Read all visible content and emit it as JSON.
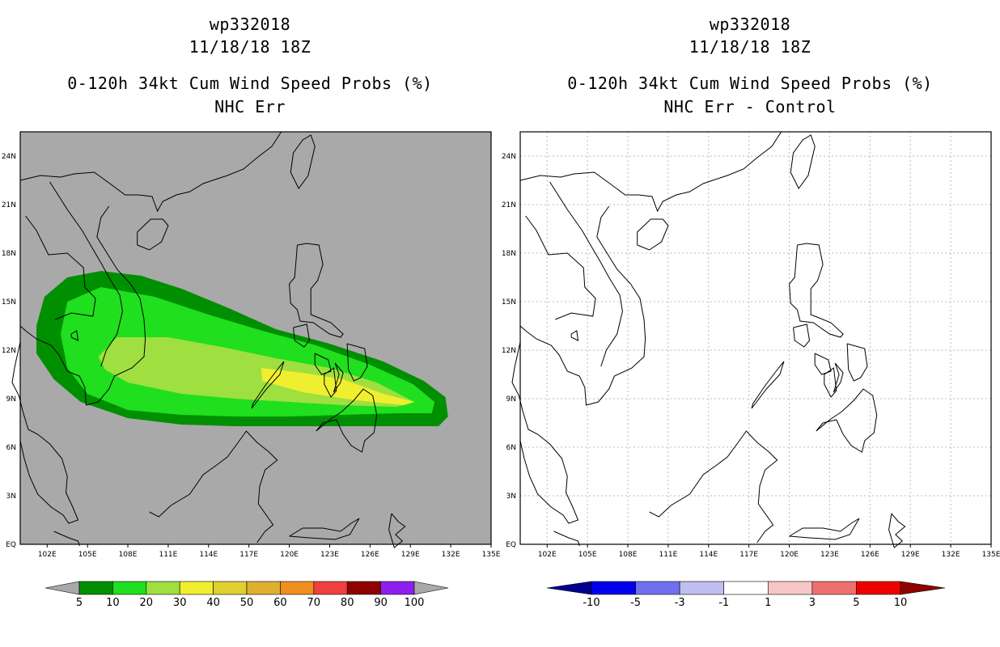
{
  "panels": [
    {
      "id": "left",
      "title": [
        "wp332018",
        "11/18/18 18Z",
        "0-120h 34kt Cum Wind Speed Probs (%)",
        "NHC Err"
      ],
      "background": "#a9a9a9",
      "grid": false,
      "colorbar": {
        "labels": [
          "5",
          "10",
          "20",
          "30",
          "40",
          "50",
          "60",
          "70",
          "80",
          "90",
          "100"
        ],
        "colors": [
          "#008f00",
          "#1fdf1f",
          "#9fdf3f",
          "#efef2f",
          "#dfcf2f",
          "#dfaf2f",
          "#ef8f1f",
          "#ef3f3f",
          "#8f0000",
          "#8f1fef"
        ],
        "end_color": "#a9a9a9"
      }
    },
    {
      "id": "right",
      "title": [
        "wp332018",
        "11/18/18 18Z",
        "0-120h 34kt Cum Wind Speed Probs (%)",
        "NHC Err - Control"
      ],
      "background": "#ffffff",
      "grid": true,
      "colorbar": {
        "labels": [
          "-10",
          "-5",
          "-3",
          "-1",
          "1",
          "3",
          "5",
          "10"
        ],
        "colors": [
          "#0000ef",
          "#6f6fef",
          "#bfbfef",
          "#ffffff",
          "#f7c7c7",
          "#ef6f6f",
          "#ef0000"
        ],
        "start_color": "#00008f",
        "end_color": "#8f0000"
      }
    }
  ],
  "map": {
    "lon_labels": [
      "102E",
      "105E",
      "108E",
      "111E",
      "114E",
      "117E",
      "120E",
      "123E",
      "126E",
      "129E",
      "132E",
      "135E"
    ],
    "lat_labels": [
      "EQ",
      "3N",
      "6N",
      "9N",
      "12N",
      "15N",
      "18N",
      "21N",
      "24N"
    ]
  },
  "probability_contours": [
    {
      "level": "5",
      "color": "#008f00"
    },
    {
      "level": "10",
      "color": "#1fdf1f"
    },
    {
      "level": "20",
      "color": "#9fdf3f"
    },
    {
      "level": "30",
      "color": "#efef2f"
    }
  ]
}
